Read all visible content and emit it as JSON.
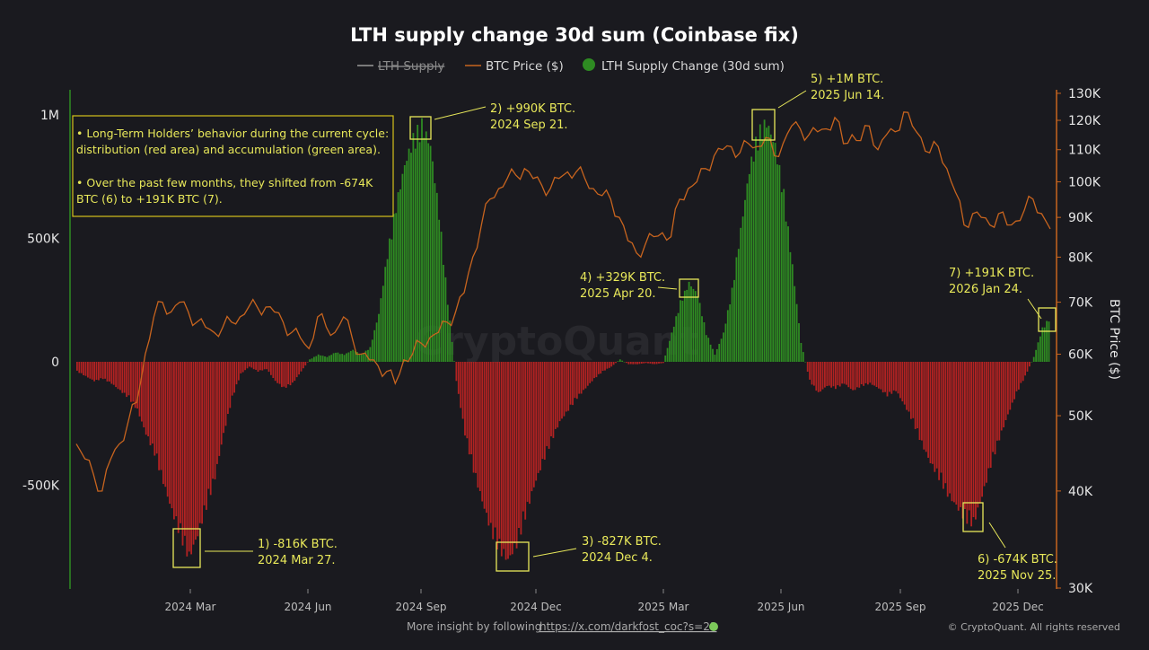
{
  "chart_data": {
    "type": "bar",
    "title": "LTH supply change 30d sum (Coinbase fix)",
    "legend": {
      "placement": "top-center",
      "items": [
        {
          "label": "LTH Supply",
          "color": "#9a9a9a",
          "hidden": true
        },
        {
          "label": "BTC Price ($)",
          "color": "#d2691e"
        },
        {
          "label": "LTH Supply Change (30d sum)",
          "color": "#2e8b22"
        }
      ]
    },
    "left_axis": {
      "ticks": [
        "1M",
        "500K",
        "0",
        "-500K"
      ],
      "tick_values": [
        1000,
        500,
        0,
        -500
      ],
      "unit": "K BTC",
      "ylim": [
        -920,
        1100
      ]
    },
    "right_axis": {
      "label": "BTC Price ($)",
      "scale": "log",
      "ticks": [
        "130K",
        "120K",
        "110K",
        "100K",
        "90K",
        "80K",
        "70K",
        "60K",
        "50K",
        "40K",
        "30K"
      ],
      "tick_values": [
        130,
        120,
        110,
        100,
        90,
        80,
        70,
        60,
        50,
        40,
        30
      ],
      "ylim": [
        30,
        130
      ]
    },
    "x_ticks": [
      "2024 Mar",
      "2024 Jun",
      "2024 Sep",
      "2024 Dec",
      "2025 Mar",
      "2025 Jun",
      "2025 Sep",
      "2025 Dec"
    ],
    "x_start": "2023 Dec",
    "x_step": "weekly",
    "supply_change_k": [
      -40,
      -60,
      -80,
      -70,
      -90,
      -120,
      -150,
      -200,
      -300,
      -380,
      -500,
      -620,
      -720,
      -816,
      -720,
      -600,
      -480,
      -300,
      -150,
      -50,
      -20,
      -40,
      -30,
      -80,
      -110,
      -90,
      -40,
      10,
      30,
      20,
      40,
      30,
      50,
      30,
      60,
      200,
      450,
      650,
      820,
      930,
      990,
      900,
      620,
      250,
      -80,
      -300,
      -450,
      -580,
      -700,
      -780,
      -827,
      -760,
      -640,
      -520,
      -420,
      -330,
      -250,
      -200,
      -150,
      -110,
      -70,
      -40,
      -20,
      10,
      -10,
      -10,
      -5,
      -10,
      -5,
      120,
      250,
      329,
      280,
      120,
      30,
      120,
      300,
      550,
      800,
      950,
      1000,
      900,
      700,
      400,
      80,
      -80,
      -130,
      -100,
      -110,
      -90,
      -120,
      -100,
      -90,
      -110,
      -140,
      -120,
      -180,
      -250,
      -340,
      -420,
      -480,
      -550,
      -600,
      -650,
      -674,
      -560,
      -430,
      -320,
      -220,
      -130,
      -60,
      20,
      140,
      191
    ],
    "btc_price_k": [
      46,
      44,
      42,
      40,
      44,
      46,
      49,
      52,
      60,
      67,
      70,
      68,
      70,
      68,
      66,
      65,
      64,
      65,
      66,
      67,
      69,
      69,
      69,
      68,
      66,
      64,
      63,
      61,
      67,
      65,
      64,
      67,
      63,
      60,
      59,
      58,
      57,
      55,
      59,
      60,
      62,
      63,
      64,
      66,
      68,
      72,
      80,
      88,
      95,
      98,
      101,
      102,
      104,
      101,
      99,
      98,
      101,
      103,
      103,
      101,
      98,
      96,
      95,
      90,
      84,
      81,
      83,
      85,
      86,
      85,
      95,
      98,
      100,
      104,
      108,
      110,
      111,
      109,
      112,
      111,
      114,
      108,
      112,
      118,
      117,
      115,
      116,
      117,
      121,
      112,
      115,
      113,
      118,
      110,
      115,
      116,
      123,
      118,
      114,
      109,
      111,
      104,
      97,
      88,
      91,
      90,
      88,
      91,
      88,
      89,
      92,
      95,
      91,
      87
    ],
    "colors": {
      "positive": "#2e8b22",
      "negative": "#b22222",
      "price": "#c8641e",
      "annotation": "#e8e85a",
      "left_axis": "#2e8b22",
      "right_axis": "#c8641e"
    },
    "annotations": [
      {
        "line1": "1) -816K BTC.",
        "line2": "2024 Mar 27."
      },
      {
        "line1": "2) +990K BTC.",
        "line2": "2024 Sep 21."
      },
      {
        "line1": "3) -827K BTC.",
        "line2": "2024 Dec 4."
      },
      {
        "line1": "4) +329K BTC.",
        "line2": "2025 Apr 20."
      },
      {
        "line1": "5) +1M BTC.",
        "line2": "2025 Jun 14."
      },
      {
        "line1": "6) -674K BTC.",
        "line2": "2025 Nov 25."
      },
      {
        "line1": "7) +191K BTC.",
        "line2": "2026 Jan 24."
      }
    ],
    "note": {
      "lines": [
        "• Long-Term Holders’ behavior during the current cycle:",
        "distribution (red area) and accumulation (green area).",
        "• Over the past few months, they shifted from -674K",
        "BTC (6) to +191K BTC (7)."
      ]
    }
  },
  "watermark": "CryptoQuant",
  "footer": {
    "prefix": "More insight by following",
    "link": "https://x.com/darkfost_coc?s=21",
    "copyright": "© CryptoQuant. All rights reserved"
  }
}
